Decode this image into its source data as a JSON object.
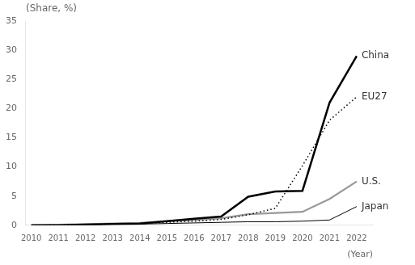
{
  "chart_data": {
    "type": "line",
    "x": [
      2010,
      2011,
      2012,
      2013,
      2014,
      2015,
      2016,
      2017,
      2018,
      2019,
      2020,
      2021,
      2022
    ],
    "series": [
      {
        "name": "China",
        "color": "#000000",
        "line_style": "solid",
        "values": [
          0.0,
          0.0,
          0.1,
          0.2,
          0.3,
          0.7,
          1.1,
          1.5,
          4.9,
          5.8,
          5.9,
          21.0,
          29.0
        ]
      },
      {
        "name": "EU27",
        "color": "#000000",
        "line_style": "dotted",
        "values": [
          0.0,
          0.0,
          0.1,
          0.2,
          0.3,
          0.5,
          0.7,
          1.0,
          1.8,
          2.9,
          10.2,
          18.0,
          22.0
        ]
      },
      {
        "name": "U.S.",
        "color": "#999999",
        "line_style": "solid",
        "values": [
          0.0,
          0.1,
          0.2,
          0.3,
          0.4,
          0.7,
          0.9,
          1.2,
          1.9,
          2.1,
          2.3,
          4.5,
          7.5
        ]
      },
      {
        "name": "Japan",
        "color": "#000000",
        "line_style": "solid",
        "values": [
          0.0,
          0.1,
          0.1,
          0.2,
          0.2,
          0.3,
          0.4,
          0.5,
          0.6,
          0.6,
          0.7,
          0.9,
          3.2
        ]
      }
    ],
    "x_label": "(Year)",
    "y_label": "(Share, %)",
    "xlim": [
      2009.8,
      2022.6
    ],
    "xticks": [
      2010,
      2011,
      2012,
      2013,
      2014,
      2015,
      2016,
      2017,
      2018,
      2019,
      2020,
      2021,
      2022
    ],
    "ylim": [
      0,
      35
    ],
    "yticks": [
      0,
      5,
      10,
      15,
      20,
      25,
      30,
      35
    ],
    "grid": false
  }
}
